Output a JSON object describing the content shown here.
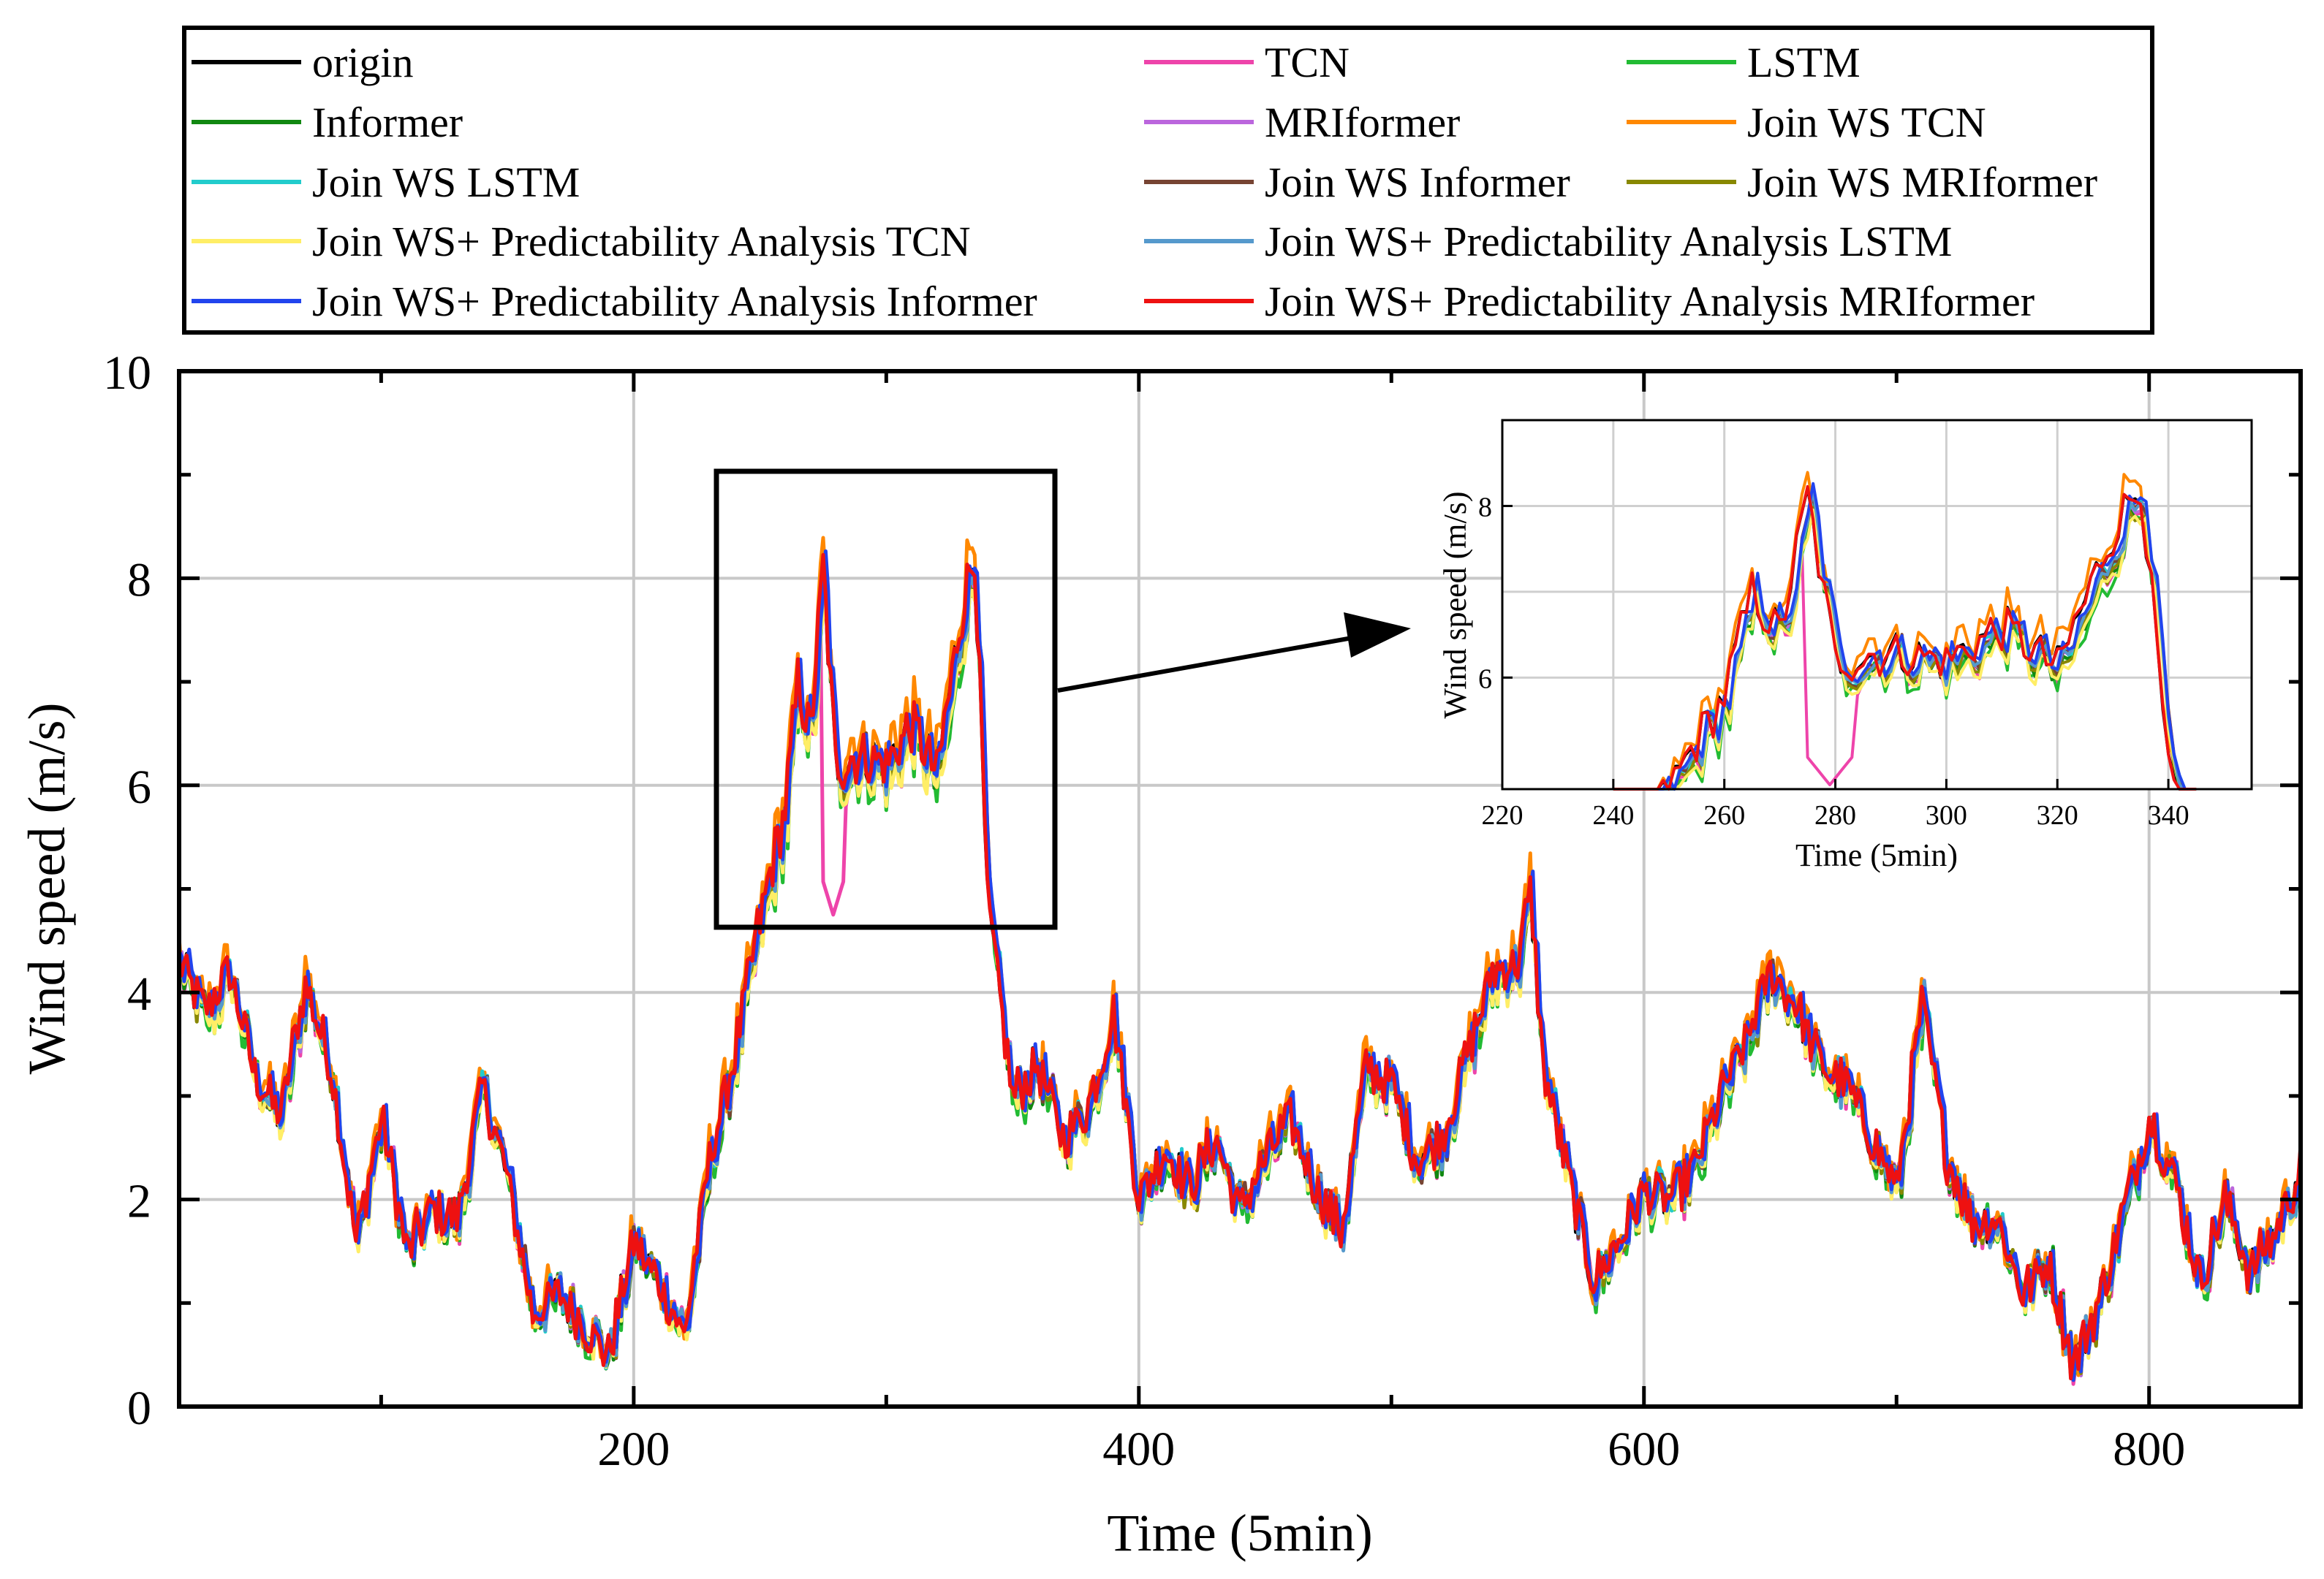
{
  "chart_data": {
    "type": "line",
    "xlabel": "Time (5min)",
    "ylabel": "Wind speed (m/s)",
    "xlim": [
      20,
      860
    ],
    "ylim": [
      0,
      10
    ],
    "x_ticks": [
      200,
      400,
      600,
      800
    ],
    "y_ticks": [
      0,
      2,
      4,
      6,
      8,
      10
    ],
    "grid": true,
    "legend": {
      "placement": "top",
      "entries": [
        {
          "name": "origin",
          "color": "#000000"
        },
        {
          "name": "TCN",
          "color": "#ee44aa"
        },
        {
          "name": "LSTM",
          "color": "#22bb33"
        },
        {
          "name": "Informer",
          "color": "#118811"
        },
        {
          "name": "MRIformer",
          "color": "#bb66dd"
        },
        {
          "name": "Join WS TCN",
          "color": "#ff8800"
        },
        {
          "name": "Join WS LSTM",
          "color": "#22cccc"
        },
        {
          "name": "Join WS Informer",
          "color": "#774433"
        },
        {
          "name": "Join WS MRIformer",
          "color": "#888800"
        },
        {
          "name": "Join WS+ Predictability Analysis TCN",
          "color": "#ffee66"
        },
        {
          "name": "Join WS+ Predictability Analysis LSTM",
          "color": "#5599cc"
        },
        {
          "name": "Join WS+ Predictability Analysis Informer",
          "color": "#2244ee"
        },
        {
          "name": "Join WS+ Predictability Analysis MRIformer",
          "color": "#ee1111"
        }
      ]
    },
    "origin_series": {
      "x": [
        20,
        30,
        40,
        50,
        60,
        70,
        80,
        90,
        100,
        110,
        120,
        130,
        140,
        150,
        160,
        170,
        180,
        190,
        200,
        210,
        220,
        230,
        240,
        250,
        260,
        265,
        270,
        275,
        280,
        290,
        300,
        310,
        320,
        330,
        335,
        340,
        350,
        360,
        370,
        380,
        390,
        400,
        410,
        420,
        430,
        440,
        450,
        460,
        470,
        480,
        490,
        500,
        510,
        520,
        530,
        540,
        550,
        555,
        560,
        570,
        580,
        590,
        600,
        610,
        620,
        630,
        640,
        650,
        660,
        670,
        680,
        690,
        700,
        710,
        720,
        730,
        740,
        750,
        760,
        770,
        780,
        790,
        800,
        810,
        820,
        830,
        840,
        850,
        860
      ],
      "y": [
        4.3,
        3.8,
        4.2,
        3.2,
        2.8,
        4.1,
        3.3,
        1.6,
        2.8,
        1.5,
        1.9,
        1.8,
        3.1,
        2.2,
        0.9,
        1.1,
        0.8,
        0.5,
        1.6,
        1.2,
        0.7,
        2.4,
        3.4,
        4.7,
        5.8,
        7.0,
        6.5,
        8.1,
        6.2,
        6.3,
        6.2,
        6.6,
        6.1,
        7.7,
        8.3,
        4.9,
        3.0,
        3.3,
        2.6,
        2.9,
        3.8,
        2.0,
        2.5,
        2.1,
        2.6,
        1.9,
        2.4,
        2.8,
        2.1,
        1.7,
        3.3,
        3.1,
        2.4,
        2.6,
        3.4,
        4.2,
        4.3,
        5.0,
        3.3,
        2.2,
        1.2,
        1.6,
        2.1,
        2.0,
        2.3,
        3.0,
        3.5,
        4.2,
        3.9,
        3.3,
        3.1,
        2.6,
        2.1,
        3.9,
        2.4,
        1.8,
        1.8,
        1.1,
        1.4,
        0.4,
        1.0,
        1.9,
        2.8,
        2.2,
        1.2,
        2.0,
        1.3,
        1.7,
        2.3
      ]
    },
    "inset": {
      "xlabel": "Time (5min)",
      "ylabel": "Wind speed (m/s)",
      "xlim": [
        220,
        355
      ],
      "ylim": [
        4.7,
        9.0
      ],
      "x_ticks": [
        220,
        240,
        260,
        280,
        300,
        320,
        340
      ],
      "y_ticks": [
        6,
        8
      ],
      "grid": true
    }
  }
}
